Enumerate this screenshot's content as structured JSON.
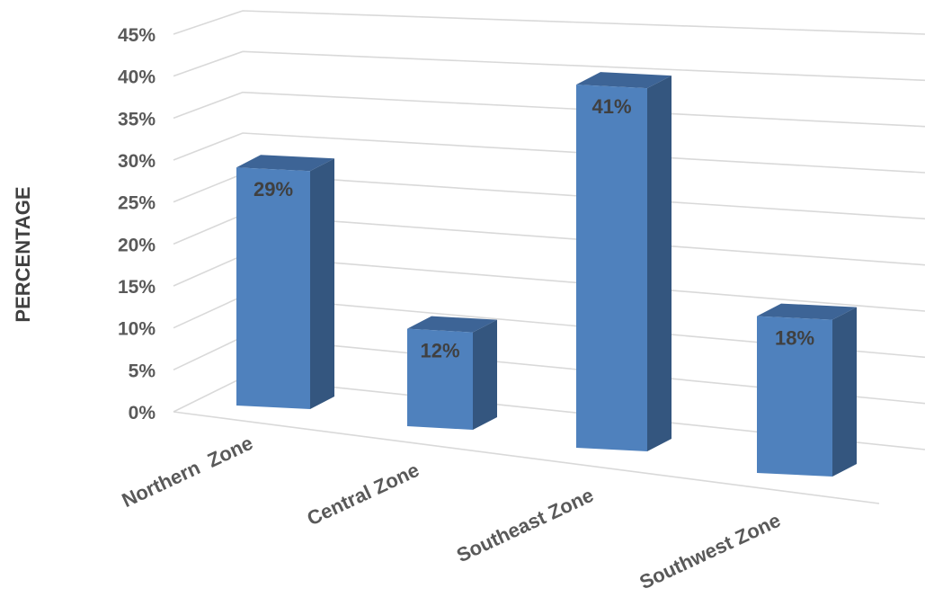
{
  "chart_data": {
    "type": "bar",
    "categories": [
      "Northern  Zone",
      "Central Zone",
      "Southeast Zone",
      "Southwest Zone"
    ],
    "values": [
      29,
      12,
      41,
      18
    ],
    "data_labels": [
      "29%",
      "12%",
      "41%",
      "18%"
    ],
    "ylabel": "PERCENTAGE",
    "ylim": [
      0,
      45
    ],
    "y_ticks": [
      "0%",
      "5%",
      "10%",
      "15%",
      "20%",
      "25%",
      "30%",
      "35%",
      "40%",
      "45%"
    ],
    "grid": true,
    "legend": "none",
    "style": "3d-perspective"
  },
  "colors": {
    "bar_front": "#4f81bd",
    "bar_side": "#34567f",
    "bar_top": "#3d6496"
  }
}
